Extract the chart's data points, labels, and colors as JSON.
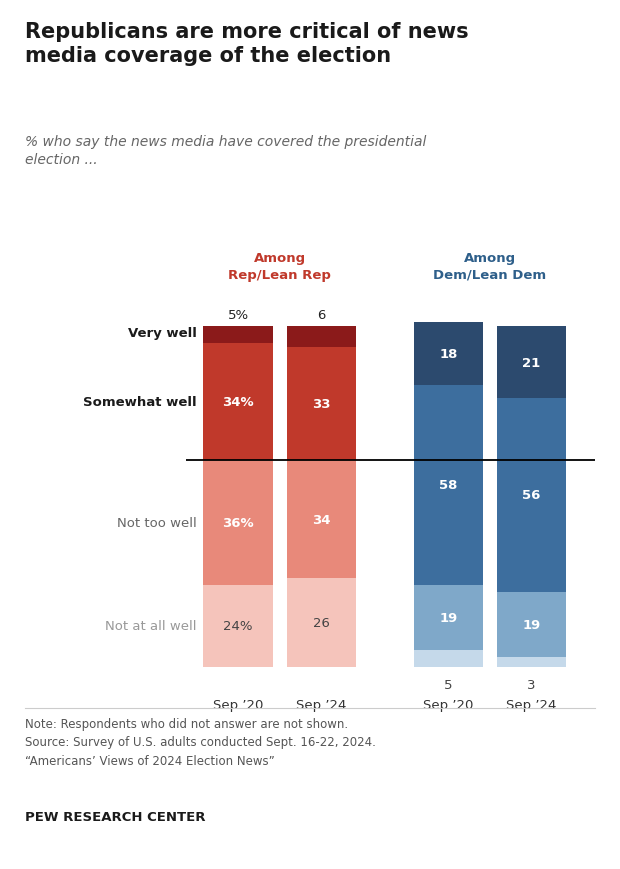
{
  "title": "Republicans are more critical of news\nmedia coverage of the election",
  "subtitle": "% who say the news media have covered the presidential\nelection ...",
  "note": "Note: Respondents who did not answer are not shown.\nSource: Survey of U.S. adults conducted Sept. 16-22, 2024.\n“Americans’ Views of 2024 Election News”",
  "source_bold": "PEW RESEARCH CENTER",
  "bar_labels": [
    "Sep ’20",
    "Sep ’24",
    "Sep ’20",
    "Sep ’24"
  ],
  "group_labels": [
    "Among\nRep/Lean Rep",
    "Among\nDem/Lean Dem"
  ],
  "group_label_colors": [
    "#c0392b",
    "#2e5f8a"
  ],
  "category_labels": [
    "Very well",
    "Somewhat well",
    "Not too well",
    "Not at all well"
  ],
  "bars": {
    "rep_sep20": {
      "very": 5,
      "somewhat": 34,
      "not_too": 36,
      "not_at_all": 24
    },
    "rep_sep24": {
      "very": 6,
      "somewhat": 33,
      "not_too": 34,
      "not_at_all": 26
    },
    "dem_sep20": {
      "very": 18,
      "somewhat": 58,
      "not_too": 19,
      "not_at_all": 5
    },
    "dem_sep24": {
      "very": 21,
      "somewhat": 56,
      "not_too": 19,
      "not_at_all": 3
    }
  },
  "rep_colors": {
    "very": "#8b1a1a",
    "somewhat": "#c0392b",
    "not_too": "#e8897a",
    "not_at_all": "#f5c4bb"
  },
  "dem_colors": {
    "very": "#2c4a6e",
    "somewhat": "#3d6e9e",
    "not_too": "#7fa8c9",
    "not_at_all": "#c5d9ea"
  },
  "value_labels": {
    "rep_sep20": {
      "very": "5%",
      "somewhat": "34%",
      "not_too": "36%",
      "not_at_all": "24%"
    },
    "rep_sep24": {
      "very": "6",
      "somewhat": "33",
      "not_too": "34",
      "not_at_all": "26"
    },
    "dem_sep20": {
      "very": "18",
      "somewhat": "58",
      "not_too": "19",
      "not_at_all": "5"
    },
    "dem_sep24": {
      "very": "21",
      "somewhat": "56",
      "not_too": "19",
      "not_at_all": "3"
    }
  },
  "figsize": [
    6.2,
    8.7
  ],
  "dpi": 100
}
